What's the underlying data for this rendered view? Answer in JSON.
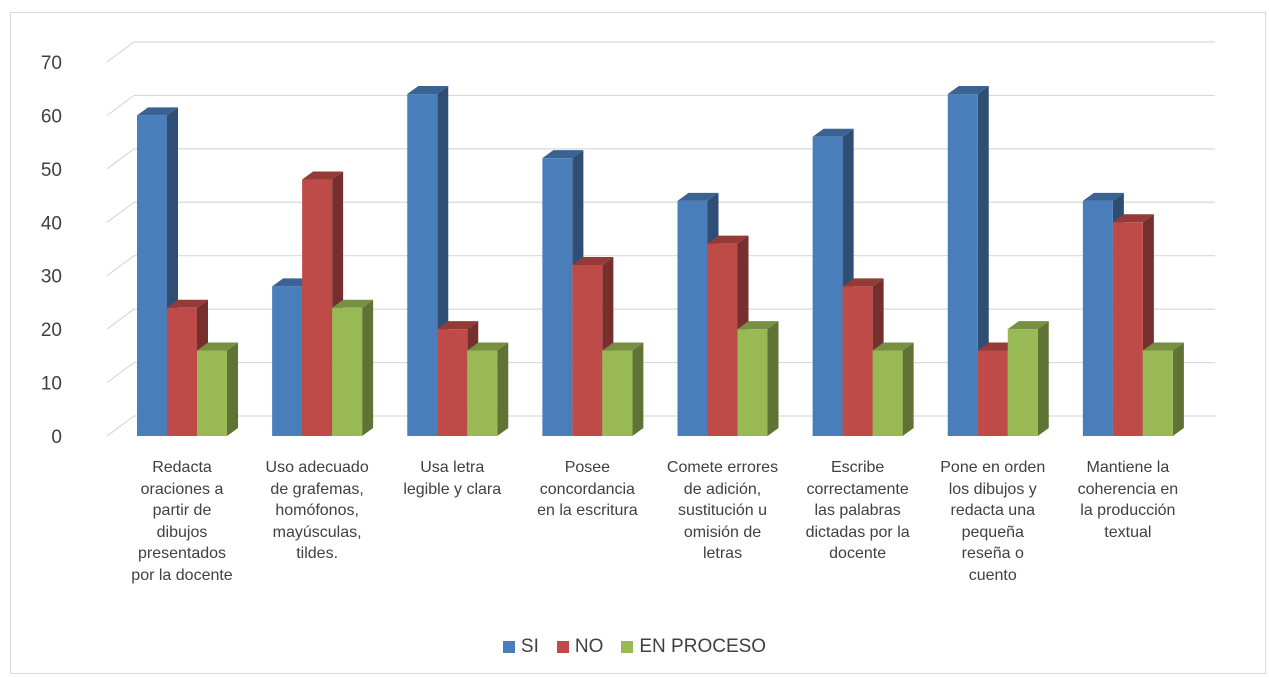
{
  "chart_data": {
    "type": "bar",
    "style": "3d-clustered-column",
    "title": "",
    "xlabel": "",
    "ylabel": "",
    "ylim": [
      0,
      70
    ],
    "yticks": [
      0,
      10,
      20,
      30,
      40,
      50,
      60,
      70
    ],
    "grid": true,
    "legend_position": "bottom",
    "categories": [
      "Redacta oraciones a partir de dibujos presentados por la docente",
      "Uso adecuado de grafemas, homófonos, mayúsculas, tildes.",
      "Usa letra legible y clara",
      "Posee concordancia en la escritura",
      "Comete errores de adición, sustitución u omisión de letras",
      "Escribe correctamente las palabras dictadas por la docente",
      "Pone en orden los dibujos y redacta una pequeña reseña o cuento",
      "Mantiene la coherencia en la producción textual"
    ],
    "category_lines": [
      [
        "Redacta",
        "oraciones a",
        "partir de",
        "dibujos",
        "presentados",
        "por la docente"
      ],
      [
        "Uso adecuado",
        "de grafemas,",
        "homófonos,",
        "mayúsculas,",
        "tildes."
      ],
      [
        "Usa letra",
        "legible y clara"
      ],
      [
        "Posee",
        "concordancia",
        "en la escritura"
      ],
      [
        "Comete errores",
        "de adición,",
        "sustitución u",
        "omisión de",
        "letras"
      ],
      [
        "Escribe",
        "correctamente",
        "las palabras",
        "dictadas por la",
        "docente"
      ],
      [
        "Pone en orden",
        "los dibujos y",
        "redacta una",
        "pequeña",
        "reseña o",
        "cuento"
      ],
      [
        "Mantiene la",
        "coherencia en",
        "la producción",
        "textual"
      ]
    ],
    "series": [
      {
        "name": "SI",
        "color": "#4a7ebb",
        "values": [
          60,
          28,
          64,
          52,
          44,
          56,
          64,
          44
        ]
      },
      {
        "name": "NO",
        "color": "#be4b48",
        "values": [
          24,
          48,
          20,
          32,
          36,
          28,
          16,
          40
        ]
      },
      {
        "name": "EN PROCESO",
        "color": "#98b954",
        "values": [
          16,
          24,
          16,
          16,
          20,
          16,
          20,
          16
        ]
      }
    ]
  }
}
